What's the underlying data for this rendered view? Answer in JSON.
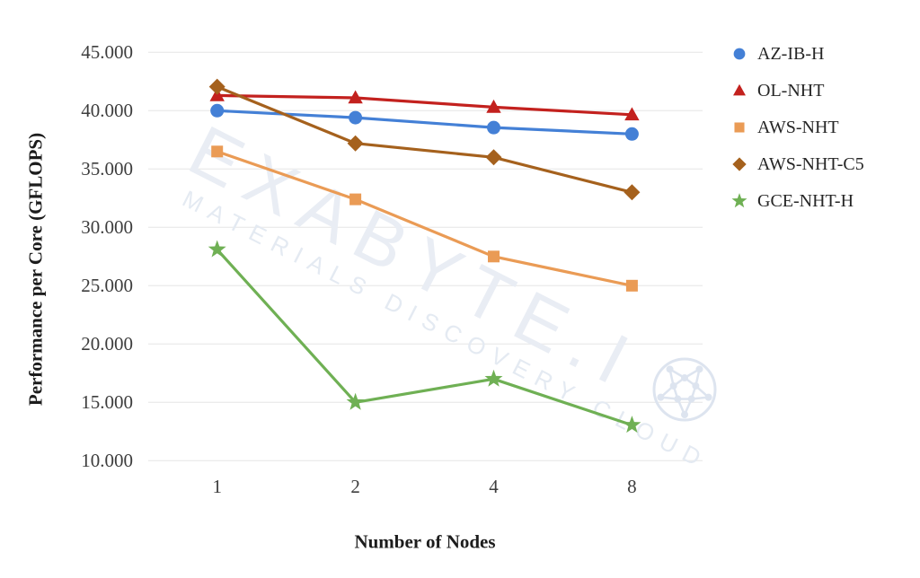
{
  "chart_data": {
    "type": "line",
    "title": "",
    "xlabel": "Number of Nodes",
    "ylabel": "Performance per Core (GFLOPS)",
    "categories": [
      "1",
      "2",
      "4",
      "8"
    ],
    "y_axis": {
      "min": 10000,
      "max": 45000,
      "tick_step": 5000,
      "tick_labels": [
        "45.000",
        "40.000",
        "35.000",
        "30.000",
        "25.000",
        "20.000",
        "15.000",
        "10.000"
      ]
    },
    "grid": "horizontal-only",
    "legend_position": "right",
    "series": [
      {
        "name": "AZ-IB-H",
        "color": "#4480d6",
        "marker": "circle",
        "values": [
          40000,
          39400,
          38550,
          38000
        ]
      },
      {
        "name": "OL-NHT",
        "color": "#c3211e",
        "marker": "triangle",
        "values": [
          41300,
          41100,
          40300,
          39650
        ]
      },
      {
        "name": "AWS-NHT",
        "color": "#ea9b55",
        "marker": "square",
        "values": [
          36500,
          32400,
          27500,
          25000
        ]
      },
      {
        "name": "AWS-NHT-C5",
        "color": "#a5611d",
        "marker": "diamond",
        "values": [
          42050,
          37200,
          36000,
          33000
        ]
      },
      {
        "name": "GCE-NHT-H",
        "color": "#6fb054",
        "marker": "star",
        "values": [
          28100,
          15000,
          17000,
          13050
        ]
      }
    ]
  },
  "style": {
    "grid_color": "#ececec",
    "tick_text_color": "#3d3d3d",
    "axis_title_color": "#1c1c1c",
    "watermark_color": "#e9edf4"
  },
  "watermark": {
    "main_text": "EXABYTE.I",
    "sub_text": "MATERIALS DISCOVERY CLOUD",
    "ball_icon": "fullerene-ball"
  }
}
